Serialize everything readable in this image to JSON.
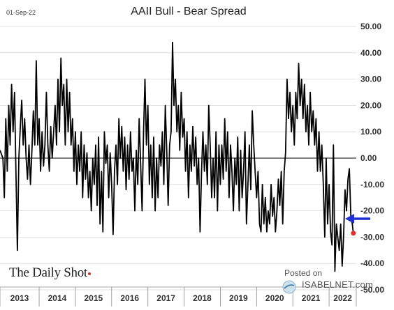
{
  "header": {
    "date": "01-Sep-22"
  },
  "branding": {
    "left": "The Daily Shot",
    "posted_on": "Posted on",
    "site": "ISABELNET.com"
  },
  "colors": {
    "line": "#000000",
    "arrow": "#1f2fd6",
    "last_point": "#e03030",
    "grid": "#d9d9d9"
  },
  "chart_data": {
    "type": "line",
    "title": "AAII Bull - Bear Spread",
    "ylim": [
      -50,
      50
    ],
    "yticks": [
      50,
      40,
      30,
      20,
      10,
      0,
      -10,
      -20,
      -30,
      -40,
      -50
    ],
    "ytick_labels": [
      "50.00",
      "40.00",
      "30.00",
      "20.00",
      "10.00",
      "0.00",
      "-10.00",
      "-20.00",
      "-30.00",
      "-40.00",
      "-50.00"
    ],
    "xlim": [
      2012.92,
      2022.75
    ],
    "year_labels": [
      "2013",
      "2014",
      "2015",
      "2016",
      "2017",
      "2018",
      "2019",
      "2020",
      "2021",
      "2022"
    ],
    "year_boundaries": [
      2012.92,
      2014,
      2015,
      2016,
      2017,
      2018,
      2019,
      2020,
      2021,
      2022,
      2022.75
    ],
    "last_point": {
      "x": 2022.67,
      "y": -28.5
    },
    "arrow_at": -23,
    "series": [
      {
        "values": [
          [
            2012.92,
            3
          ],
          [
            2013.0,
            0
          ],
          [
            2013.04,
            -15
          ],
          [
            2013.08,
            15
          ],
          [
            2013.12,
            -5
          ],
          [
            2013.16,
            20
          ],
          [
            2013.2,
            5
          ],
          [
            2013.24,
            28
          ],
          [
            2013.28,
            10
          ],
          [
            2013.32,
            25
          ],
          [
            2013.36,
            -5
          ],
          [
            2013.4,
            -35
          ],
          [
            2013.44,
            0
          ],
          [
            2013.48,
            12
          ],
          [
            2013.52,
            22
          ],
          [
            2013.56,
            5
          ],
          [
            2013.6,
            15
          ],
          [
            2013.64,
            0
          ],
          [
            2013.68,
            -8
          ],
          [
            2013.72,
            5
          ],
          [
            2013.76,
            -10
          ],
          [
            2013.8,
            3
          ],
          [
            2013.84,
            18
          ],
          [
            2013.88,
            5
          ],
          [
            2013.92,
            37
          ],
          [
            2013.96,
            5
          ],
          [
            2014.0,
            15
          ],
          [
            2014.04,
            -5
          ],
          [
            2014.08,
            10
          ],
          [
            2014.12,
            -3
          ],
          [
            2014.16,
            5
          ],
          [
            2014.2,
            25
          ],
          [
            2014.24,
            5
          ],
          [
            2014.28,
            -5
          ],
          [
            2014.32,
            12
          ],
          [
            2014.36,
            0
          ],
          [
            2014.4,
            10
          ],
          [
            2014.44,
            20
          ],
          [
            2014.48,
            5
          ],
          [
            2014.52,
            30
          ],
          [
            2014.56,
            10
          ],
          [
            2014.6,
            38
          ],
          [
            2014.64,
            20
          ],
          [
            2014.68,
            28
          ],
          [
            2014.72,
            5
          ],
          [
            2014.76,
            30
          ],
          [
            2014.8,
            10
          ],
          [
            2014.84,
            25
          ],
          [
            2014.88,
            5
          ],
          [
            2014.92,
            15
          ],
          [
            2014.96,
            -5
          ],
          [
            2015.0,
            10
          ],
          [
            2015.04,
            -10
          ],
          [
            2015.08,
            5
          ],
          [
            2015.12,
            -5
          ],
          [
            2015.16,
            10
          ],
          [
            2015.2,
            -15
          ],
          [
            2015.24,
            5
          ],
          [
            2015.28,
            -8
          ],
          [
            2015.32,
            2
          ],
          [
            2015.36,
            -15
          ],
          [
            2015.4,
            -5
          ],
          [
            2015.44,
            -20
          ],
          [
            2015.48,
            0
          ],
          [
            2015.52,
            -10
          ],
          [
            2015.56,
            5
          ],
          [
            2015.6,
            -18
          ],
          [
            2015.64,
            8
          ],
          [
            2015.68,
            -25
          ],
          [
            2015.72,
            -5
          ],
          [
            2015.76,
            -28
          ],
          [
            2015.8,
            10
          ],
          [
            2015.84,
            -2
          ],
          [
            2015.88,
            5
          ],
          [
            2015.92,
            -15
          ],
          [
            2015.96,
            2
          ],
          [
            2016.0,
            -10
          ],
          [
            2016.04,
            -29
          ],
          [
            2016.08,
            -5
          ],
          [
            2016.12,
            5
          ],
          [
            2016.16,
            -10
          ],
          [
            2016.2,
            15
          ],
          [
            2016.24,
            0
          ],
          [
            2016.28,
            12
          ],
          [
            2016.32,
            -5
          ],
          [
            2016.36,
            8
          ],
          [
            2016.4,
            -12
          ],
          [
            2016.44,
            5
          ],
          [
            2016.48,
            -8
          ],
          [
            2016.52,
            10
          ],
          [
            2016.56,
            -5
          ],
          [
            2016.6,
            0
          ],
          [
            2016.64,
            -20
          ],
          [
            2016.68,
            3
          ],
          [
            2016.72,
            -10
          ],
          [
            2016.76,
            15
          ],
          [
            2016.8,
            -2
          ],
          [
            2016.84,
            -20
          ],
          [
            2016.88,
            10
          ],
          [
            2016.92,
            30
          ],
          [
            2016.96,
            5
          ],
          [
            2017.0,
            20
          ],
          [
            2017.04,
            -10
          ],
          [
            2017.08,
            5
          ],
          [
            2017.12,
            -15
          ],
          [
            2017.16,
            8
          ],
          [
            2017.2,
            -20
          ],
          [
            2017.24,
            0
          ],
          [
            2017.28,
            -15
          ],
          [
            2017.32,
            5
          ],
          [
            2017.36,
            -3
          ],
          [
            2017.4,
            10
          ],
          [
            2017.44,
            -10
          ],
          [
            2017.48,
            20
          ],
          [
            2017.52,
            3
          ],
          [
            2017.56,
            -18
          ],
          [
            2017.6,
            5
          ],
          [
            2017.64,
            10
          ],
          [
            2017.68,
            44
          ],
          [
            2017.72,
            20
          ],
          [
            2017.76,
            30
          ],
          [
            2017.8,
            10
          ],
          [
            2017.84,
            20
          ],
          [
            2017.88,
            3
          ],
          [
            2017.92,
            25
          ],
          [
            2017.96,
            8
          ],
          [
            2018.0,
            15
          ],
          [
            2018.04,
            -5
          ],
          [
            2018.08,
            10
          ],
          [
            2018.12,
            -15
          ],
          [
            2018.16,
            5
          ],
          [
            2018.2,
            -5
          ],
          [
            2018.24,
            12
          ],
          [
            2018.28,
            -3
          ],
          [
            2018.32,
            8
          ],
          [
            2018.36,
            -10
          ],
          [
            2018.4,
            0
          ],
          [
            2018.44,
            -28
          ],
          [
            2018.48,
            -5
          ],
          [
            2018.52,
            10
          ],
          [
            2018.56,
            -5
          ],
          [
            2018.6,
            5
          ],
          [
            2018.64,
            -10
          ],
          [
            2018.68,
            20
          ],
          [
            2018.72,
            5
          ],
          [
            2018.76,
            -15
          ],
          [
            2018.8,
            0
          ],
          [
            2018.84,
            -15
          ],
          [
            2018.88,
            10
          ],
          [
            2018.92,
            -20
          ],
          [
            2018.96,
            5
          ],
          [
            2019.0,
            -10
          ],
          [
            2019.04,
            5
          ],
          [
            2019.08,
            -8
          ],
          [
            2019.12,
            15
          ],
          [
            2019.16,
            -5
          ],
          [
            2019.2,
            10
          ],
          [
            2019.24,
            -15
          ],
          [
            2019.28,
            5
          ],
          [
            2019.32,
            -5
          ],
          [
            2019.36,
            -20
          ],
          [
            2019.4,
            0
          ],
          [
            2019.44,
            -10
          ],
          [
            2019.48,
            8
          ],
          [
            2019.52,
            -20
          ],
          [
            2019.56,
            3
          ],
          [
            2019.6,
            -15
          ],
          [
            2019.64,
            -5
          ],
          [
            2019.68,
            10
          ],
          [
            2019.72,
            -25
          ],
          [
            2019.76,
            -10
          ],
          [
            2019.8,
            5
          ],
          [
            2019.84,
            -12
          ],
          [
            2019.88,
            18
          ],
          [
            2019.92,
            5
          ],
          [
            2019.96,
            -5
          ],
          [
            2020.0,
            -15
          ],
          [
            2020.04,
            -5
          ],
          [
            2020.08,
            -25
          ],
          [
            2020.12,
            -28
          ],
          [
            2020.16,
            -10
          ],
          [
            2020.2,
            -25
          ],
          [
            2020.24,
            -15
          ],
          [
            2020.28,
            -28
          ],
          [
            2020.32,
            -20
          ],
          [
            2020.36,
            -25
          ],
          [
            2020.4,
            -10
          ],
          [
            2020.44,
            -22
          ],
          [
            2020.48,
            -15
          ],
          [
            2020.52,
            -28
          ],
          [
            2020.56,
            -20
          ],
          [
            2020.6,
            -8
          ],
          [
            2020.64,
            -18
          ],
          [
            2020.68,
            -5
          ],
          [
            2020.72,
            -25
          ],
          [
            2020.76,
            -5
          ],
          [
            2020.8,
            2
          ],
          [
            2020.84,
            30
          ],
          [
            2020.88,
            15
          ],
          [
            2020.92,
            25
          ],
          [
            2020.96,
            10
          ],
          [
            2021.0,
            20
          ],
          [
            2021.04,
            5
          ],
          [
            2021.08,
            25
          ],
          [
            2021.12,
            15
          ],
          [
            2021.16,
            36
          ],
          [
            2021.2,
            20
          ],
          [
            2021.24,
            30
          ],
          [
            2021.28,
            15
          ],
          [
            2021.32,
            28
          ],
          [
            2021.36,
            10
          ],
          [
            2021.4,
            20
          ],
          [
            2021.44,
            5
          ],
          [
            2021.48,
            25
          ],
          [
            2021.52,
            10
          ],
          [
            2021.56,
            18
          ],
          [
            2021.6,
            5
          ],
          [
            2021.64,
            15
          ],
          [
            2021.68,
            -5
          ],
          [
            2021.72,
            10
          ],
          [
            2021.76,
            -5
          ],
          [
            2021.8,
            5
          ],
          [
            2021.84,
            -10
          ],
          [
            2021.88,
            -30
          ],
          [
            2021.92,
            0
          ],
          [
            2021.96,
            -25
          ],
          [
            2022.0,
            -10
          ],
          [
            2022.04,
            -28
          ],
          [
            2022.08,
            -33
          ],
          [
            2022.12,
            5
          ],
          [
            2022.16,
            -43
          ],
          [
            2022.2,
            -25
          ],
          [
            2022.24,
            -30
          ],
          [
            2022.28,
            -35
          ],
          [
            2022.32,
            -25
          ],
          [
            2022.36,
            -41
          ],
          [
            2022.4,
            -30
          ],
          [
            2022.44,
            -12
          ],
          [
            2022.48,
            -20
          ],
          [
            2022.52,
            -8
          ],
          [
            2022.56,
            -4
          ],
          [
            2022.6,
            -22
          ],
          [
            2022.64,
            -25
          ],
          [
            2022.67,
            -28.5
          ]
        ]
      }
    ]
  }
}
